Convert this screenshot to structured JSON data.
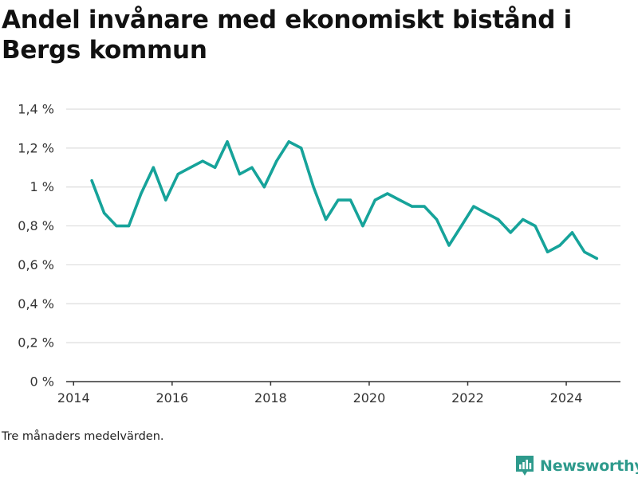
{
  "title": "Andel invånare med ekonomiskt bistånd i Bergs kommun",
  "note": "Tre månaders medelvärden.",
  "brand": {
    "name": "Newsworthy",
    "icon": "newsworthy-logo-icon",
    "color": "#2e9a8c"
  },
  "chart_data": {
    "type": "line",
    "title": "Andel invånare med ekonomiskt bistånd i Bergs kommun",
    "xlabel": "",
    "ylabel": "",
    "xlim": [
      2013.85,
      2025.1
    ],
    "ylim": [
      0,
      1.4
    ],
    "grid": true,
    "legend": "none",
    "line_color": "#16a39a",
    "x_ticks": [
      2014,
      2016,
      2018,
      2020,
      2022,
      2024
    ],
    "x_tick_labels": [
      "2014",
      "2016",
      "2018",
      "2020",
      "2022",
      "2024"
    ],
    "y_ticks": [
      0,
      0.2,
      0.4,
      0.6,
      0.8,
      1.0,
      1.2,
      1.4
    ],
    "y_tick_labels": [
      "0 %",
      "0,2 %",
      "0,4 %",
      "0,6 %",
      "0,8 %",
      "1 %",
      "1,2 %",
      "1,4 %"
    ],
    "series": [
      {
        "x": [
          2014.37,
          2014.62,
          2014.87,
          2015.12,
          2015.37,
          2015.62,
          2015.87,
          2016.12,
          2016.37,
          2016.62,
          2016.87,
          2017.12,
          2017.37,
          2017.62,
          2017.87,
          2018.12,
          2018.37,
          2018.62,
          2018.87,
          2019.12,
          2019.37,
          2019.62,
          2019.87,
          2020.12,
          2020.37,
          2020.62,
          2020.87,
          2021.12,
          2021.37,
          2021.62,
          2021.87,
          2022.12,
          2022.37,
          2022.62,
          2022.87,
          2023.12,
          2023.37,
          2023.62,
          2023.87,
          2024.12,
          2024.37,
          2024.62
        ],
        "values": [
          1.033,
          0.866,
          0.8,
          0.8,
          0.966,
          1.1,
          0.933,
          1.066,
          1.1,
          1.133,
          1.1,
          1.233,
          1.066,
          1.1,
          1.0,
          1.133,
          1.233,
          1.2,
          1.0,
          0.833,
          0.933,
          0.933,
          0.8,
          0.933,
          0.966,
          0.933,
          0.9,
          0.9,
          0.833,
          0.7,
          0.8,
          0.9,
          0.866,
          0.833,
          0.766,
          0.833,
          0.8,
          0.666,
          0.7,
          0.766,
          0.666,
          0.633
        ]
      }
    ]
  }
}
